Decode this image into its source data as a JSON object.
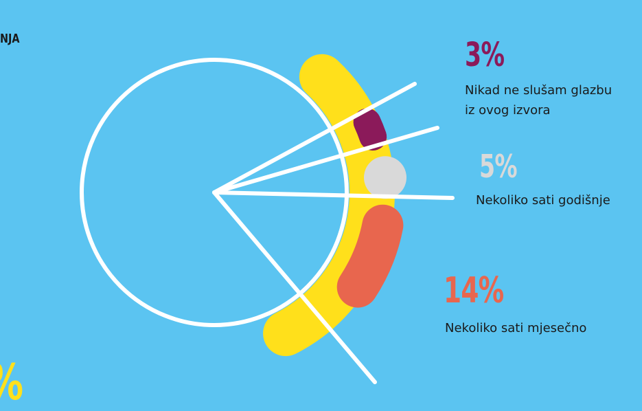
{
  "colors": {
    "background": "#5BC4F1",
    "yellow": "#FFE01B",
    "purple": "#8B1A5A",
    "gray": "#D9D9D9",
    "coral": "#E8664E",
    "white": "#FFFFFF"
  },
  "cut_title": "NJA",
  "cut_percent": "%",
  "chart_data": {
    "type": "pie",
    "slices": [
      {
        "value": 3,
        "percent_label": "3%",
        "label_line1": "Nikad ne slušam glazbu",
        "label_line2": "iz ovog izvora",
        "color": "#8B1A5A"
      },
      {
        "value": 5,
        "percent_label": "5%",
        "label_line1": "Nekoliko sati godišnje",
        "label_line2": "",
        "color": "#D9D9D9"
      },
      {
        "value": 14,
        "percent_label": "14%",
        "label_line1": "Nekoliko sati mjesečno",
        "label_line2": "",
        "color": "#E8664E"
      }
    ]
  }
}
